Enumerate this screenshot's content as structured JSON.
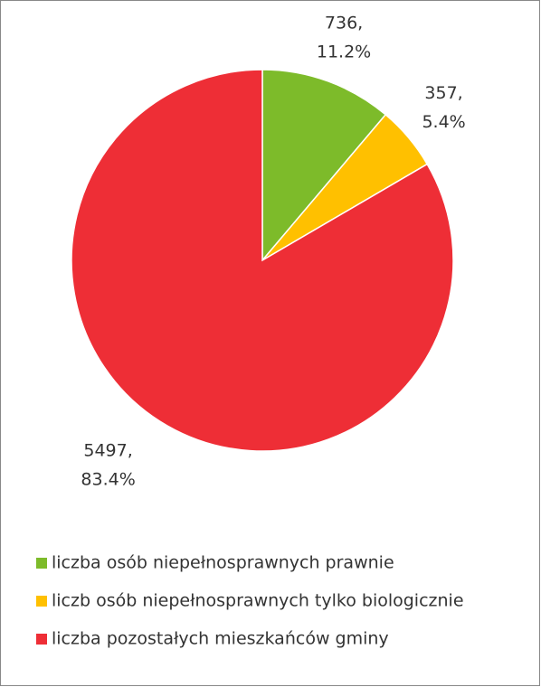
{
  "chart_data": {
    "type": "pie",
    "categories": [
      "liczba osób niepełnosprawnych prawnie",
      "liczb osób niepełnosprawnych tylko biologicznie",
      "liczba pozostałych mieszkańców gminy"
    ],
    "values": [
      736,
      357,
      5497
    ],
    "value_labels": [
      "736,",
      "357,",
      "5497,"
    ],
    "percent_labels": [
      "11.2%",
      "5.4%",
      "83.4%"
    ],
    "colors": [
      "#7dbb2a",
      "#ffc000",
      "#ee2e36"
    ],
    "legend": "bottom"
  }
}
